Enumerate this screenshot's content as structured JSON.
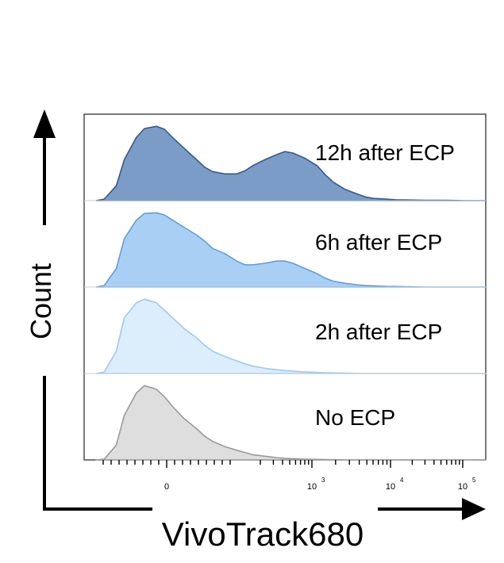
{
  "chart_data": {
    "type": "area",
    "subtype": "stacked flow-cytometry histogram (ridgeline)",
    "xlabel": "VivoTrack680",
    "ylabel": "Count",
    "x_scale": "biexponential (linear near 0, log above)",
    "x_tick_labels": [
      "0",
      "10",
      "10",
      "10"
    ],
    "x_tick_exponents": [
      "",
      "3",
      "4",
      "5"
    ],
    "x_tick_values": [
      0,
      1000,
      10000,
      100000
    ],
    "panels": [
      {
        "name": "12h after ECP",
        "color": "#7a9cc6",
        "edge": "#2f5b95",
        "x_rel": [
          0.03,
          0.05,
          0.08,
          0.1,
          0.13,
          0.15,
          0.18,
          0.2,
          0.22,
          0.25,
          0.28,
          0.3,
          0.32,
          0.35,
          0.38,
          0.4,
          0.42,
          0.45,
          0.48,
          0.5,
          0.52,
          0.55,
          0.58,
          0.6,
          0.62,
          0.65,
          0.68,
          0.7,
          0.72,
          0.75,
          0.78,
          0.8,
          0.85,
          0.9,
          0.95,
          1.0
        ],
        "y_rel": [
          0.0,
          0.02,
          0.2,
          0.55,
          0.85,
          0.97,
          1.0,
          0.96,
          0.85,
          0.7,
          0.55,
          0.45,
          0.39,
          0.36,
          0.36,
          0.4,
          0.47,
          0.55,
          0.62,
          0.66,
          0.64,
          0.57,
          0.47,
          0.35,
          0.25,
          0.15,
          0.09,
          0.05,
          0.03,
          0.02,
          0.01,
          0.01,
          0.005,
          0.005,
          0.0,
          0.0
        ]
      },
      {
        "name": "6h after ECP",
        "color": "#a9cff5",
        "edge": "#5c9fe0",
        "x_rel": [
          0.03,
          0.05,
          0.08,
          0.1,
          0.13,
          0.15,
          0.18,
          0.2,
          0.22,
          0.25,
          0.28,
          0.3,
          0.32,
          0.35,
          0.38,
          0.4,
          0.42,
          0.45,
          0.48,
          0.5,
          0.52,
          0.55,
          0.58,
          0.6,
          0.62,
          0.65,
          0.68,
          0.7,
          0.75,
          0.8,
          0.85,
          0.9,
          0.95,
          1.0
        ],
        "y_rel": [
          0.0,
          0.02,
          0.25,
          0.65,
          0.9,
          0.99,
          1.0,
          0.97,
          0.9,
          0.8,
          0.7,
          0.62,
          0.52,
          0.45,
          0.35,
          0.3,
          0.3,
          0.32,
          0.35,
          0.35,
          0.32,
          0.25,
          0.18,
          0.12,
          0.08,
          0.05,
          0.03,
          0.02,
          0.01,
          0.005,
          0.0,
          0.0,
          0.0,
          0.0
        ]
      },
      {
        "name": "2h after ECP",
        "color": "#dcedfb",
        "edge": "#9ccaf0",
        "x_rel": [
          0.03,
          0.05,
          0.08,
          0.1,
          0.13,
          0.15,
          0.18,
          0.2,
          0.22,
          0.25,
          0.28,
          0.3,
          0.32,
          0.35,
          0.38,
          0.4,
          0.42,
          0.45,
          0.48,
          0.5,
          0.55,
          0.6,
          0.65,
          0.7,
          0.8,
          0.9,
          1.0
        ],
        "y_rel": [
          0.0,
          0.02,
          0.3,
          0.75,
          0.95,
          1.0,
          0.95,
          0.85,
          0.75,
          0.6,
          0.48,
          0.38,
          0.3,
          0.23,
          0.17,
          0.13,
          0.1,
          0.07,
          0.05,
          0.04,
          0.02,
          0.01,
          0.005,
          0.0,
          0.0,
          0.0,
          0.0
        ]
      },
      {
        "name": "No ECP",
        "color": "#dedede",
        "edge": "#9a9a9a",
        "x_rel": [
          0.03,
          0.05,
          0.08,
          0.1,
          0.13,
          0.15,
          0.18,
          0.2,
          0.22,
          0.25,
          0.28,
          0.3,
          0.32,
          0.35,
          0.38,
          0.4,
          0.42,
          0.45,
          0.48,
          0.5,
          0.55,
          0.6,
          0.65,
          0.7,
          0.8,
          0.9,
          1.0
        ],
        "y_rel": [
          0.0,
          0.01,
          0.2,
          0.6,
          0.9,
          1.0,
          0.95,
          0.85,
          0.72,
          0.55,
          0.42,
          0.32,
          0.25,
          0.18,
          0.13,
          0.1,
          0.07,
          0.05,
          0.03,
          0.02,
          0.01,
          0.005,
          0.0,
          0.0,
          0.0,
          0.0,
          0.0
        ]
      }
    ]
  }
}
